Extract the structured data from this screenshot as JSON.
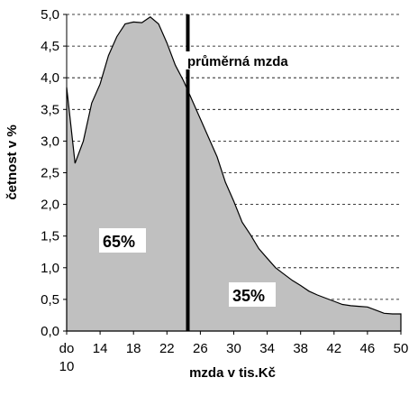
{
  "chart_data": {
    "type": "area",
    "ylabel": "četnost v %",
    "xlabel": "mzda v tis.Kč",
    "ylim": [
      0,
      5
    ],
    "xlim": [
      10,
      50
    ],
    "y_ticks": [
      "0,0",
      "0,5",
      "1,0",
      "1,5",
      "2,0",
      "2,5",
      "3,0",
      "3,5",
      "4,0",
      "4,5",
      "5,0"
    ],
    "x_ticks": [
      {
        "value": 10,
        "label": "do"
      },
      {
        "value": 14,
        "label": "14"
      },
      {
        "value": 18,
        "label": "18"
      },
      {
        "value": 22,
        "label": "22"
      },
      {
        "value": 26,
        "label": "26"
      },
      {
        "value": 30,
        "label": "30"
      },
      {
        "value": 34,
        "label": "34"
      },
      {
        "value": 38,
        "label": "38"
      },
      {
        "value": 42,
        "label": "42"
      },
      {
        "value": 46,
        "label": "46"
      },
      {
        "value": 50,
        "label": "50"
      }
    ],
    "x_first_label_line2": "10",
    "grid": "horizontal dashed",
    "x": [
      10,
      11,
      12,
      13,
      14,
      15,
      16,
      17,
      18,
      19,
      20,
      21,
      22,
      23,
      24,
      25,
      26,
      27,
      28,
      29,
      30,
      31,
      32,
      33,
      34,
      35,
      36,
      37,
      38,
      39,
      40,
      41,
      42,
      43,
      44,
      45,
      46,
      47,
      48,
      49,
      50
    ],
    "values": [
      3.85,
      2.65,
      3.0,
      3.6,
      3.9,
      4.35,
      4.65,
      4.85,
      4.88,
      4.87,
      4.96,
      4.85,
      4.55,
      4.2,
      3.95,
      3.65,
      3.35,
      3.05,
      2.75,
      2.35,
      2.05,
      1.72,
      1.52,
      1.3,
      1.15,
      1.0,
      0.9,
      0.8,
      0.72,
      0.63,
      0.57,
      0.52,
      0.47,
      0.42,
      0.4,
      0.39,
      0.38,
      0.33,
      0.28,
      0.27,
      0.27
    ],
    "average_line": {
      "x": 24.5,
      "label": "průměrná mzda"
    },
    "area_labels": {
      "left": "65%",
      "right": "35%"
    }
  }
}
